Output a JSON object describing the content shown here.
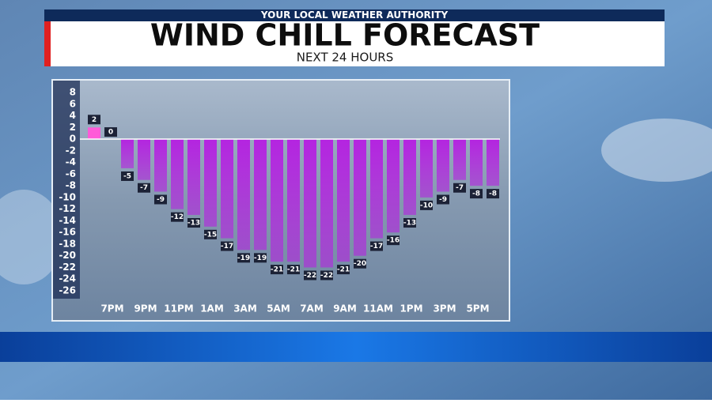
{
  "banner": "YOUR LOCAL WEATHER AUTHORITY",
  "chart_data": {
    "type": "bar",
    "title": "WIND CHILL FORECAST",
    "subtitle": "NEXT 24 HOURS",
    "categories": [
      null,
      "7PM",
      null,
      "9PM",
      null,
      "11PM",
      null,
      "1AM",
      null,
      "3AM",
      null,
      "5AM",
      null,
      "7AM",
      null,
      "9AM",
      null,
      "11AM",
      null,
      "1PM",
      null,
      "3PM",
      null,
      "5PM",
      null
    ],
    "values": [
      2,
      0,
      -5,
      -7,
      -9,
      -12,
      -13,
      -15,
      -17,
      -19,
      -19,
      -21,
      -21,
      -22,
      -22,
      -21,
      -20,
      -17,
      -16,
      -13,
      -10,
      -9,
      -7,
      -8,
      -8
    ],
    "colors": {
      "positive": "#ff5ad8",
      "negative": "#b424e0"
    },
    "ylim": [
      -26,
      8
    ],
    "yticks": [
      8,
      6,
      4,
      2,
      0,
      -2,
      -4,
      -6,
      -8,
      -10,
      -12,
      -14,
      -16,
      -18,
      -20,
      -22,
      -24,
      -26
    ]
  }
}
